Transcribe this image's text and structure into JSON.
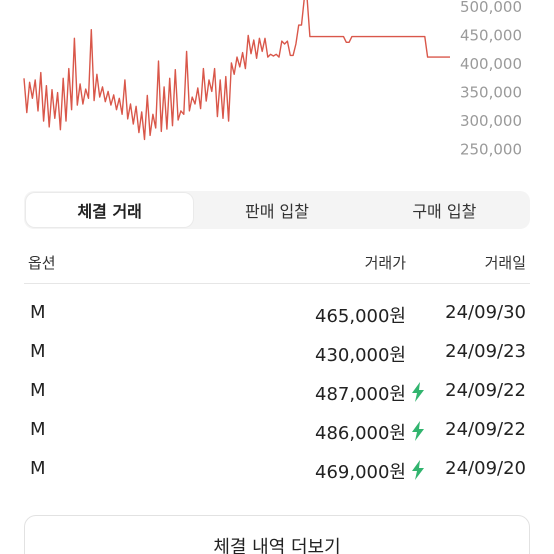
{
  "chart_data": {
    "type": "line",
    "color": "#d9574a",
    "y_ticks": [
      "500,000",
      "450,000",
      "400,000",
      "350,000",
      "300,000",
      "250,000"
    ],
    "y_tick_values": [
      500000,
      450000,
      400000,
      350000,
      300000,
      250000
    ],
    "ylim": [
      232000,
      512000
    ],
    "series": [
      {
        "values": [
          375000,
          315000,
          368000,
          340000,
          372000,
          318000,
          385000,
          300000,
          362000,
          290000,
          355000,
          305000,
          350000,
          285000,
          375000,
          300000,
          392000,
          320000,
          445000,
          328000,
          365000,
          330000,
          356000,
          340000,
          460000,
          336000,
          382000,
          342000,
          360000,
          334000,
          352000,
          328000,
          346000,
          320000,
          340000,
          312000,
          372000,
          304000,
          330000,
          295000,
          326000,
          280000,
          316000,
          268000,
          345000,
          275000,
          312000,
          288000,
          405000,
          282000,
          360000,
          286000,
          375000,
          292000,
          390000,
          302000,
          318000,
          312000,
          422000,
          318000,
          342000,
          330000,
          358000,
          322000,
          392000,
          335000,
          372000,
          352000,
          392000,
          308000,
          372000,
          305000,
          378000,
          300000,
          402000,
          382000,
          412000,
          395000,
          420000,
          392000,
          450000,
          418000,
          442000,
          410000,
          445000,
          422000,
          445000,
          412000,
          417000,
          414000,
          417000,
          412000,
          440000,
          435000,
          440000,
          415000,
          415000,
          435000,
          468000,
          468000,
          515000,
          515000,
          448000,
          448000,
          448000,
          448000,
          448000,
          448000,
          448000,
          448000,
          448000,
          448000,
          448000,
          448000,
          448000,
          438000,
          438000,
          448000,
          448000,
          448000,
          448000,
          448000,
          448000,
          448000,
          448000,
          448000,
          448000,
          448000,
          448000,
          448000,
          448000,
          448000,
          448000,
          448000,
          448000,
          448000,
          448000,
          448000,
          448000,
          448000,
          448000,
          448000,
          448000,
          448000,
          412000,
          412000,
          412000,
          412000,
          412000,
          412000,
          412000,
          412000,
          412000
        ]
      }
    ]
  },
  "tabs": [
    {
      "label": "체결 거래",
      "active": true
    },
    {
      "label": "판매 입찰",
      "active": false
    },
    {
      "label": "구매 입찰",
      "active": false
    }
  ],
  "table": {
    "headers": {
      "option": "옵션",
      "price": "거래가",
      "date": "거래일"
    },
    "rows": [
      {
        "option": "M",
        "price": "465,000원",
        "flash": false,
        "date": "24/09/30"
      },
      {
        "option": "M",
        "price": "430,000원",
        "flash": false,
        "date": "24/09/23"
      },
      {
        "option": "M",
        "price": "487,000원",
        "flash": true,
        "date": "24/09/22"
      },
      {
        "option": "M",
        "price": "486,000원",
        "flash": true,
        "date": "24/09/22"
      },
      {
        "option": "M",
        "price": "469,000원",
        "flash": true,
        "date": "24/09/20"
      }
    ]
  },
  "more_button": {
    "label": "체결 내역 더보기"
  },
  "flash_icon": {
    "name": "lightning-icon",
    "color": "#31b46e"
  }
}
